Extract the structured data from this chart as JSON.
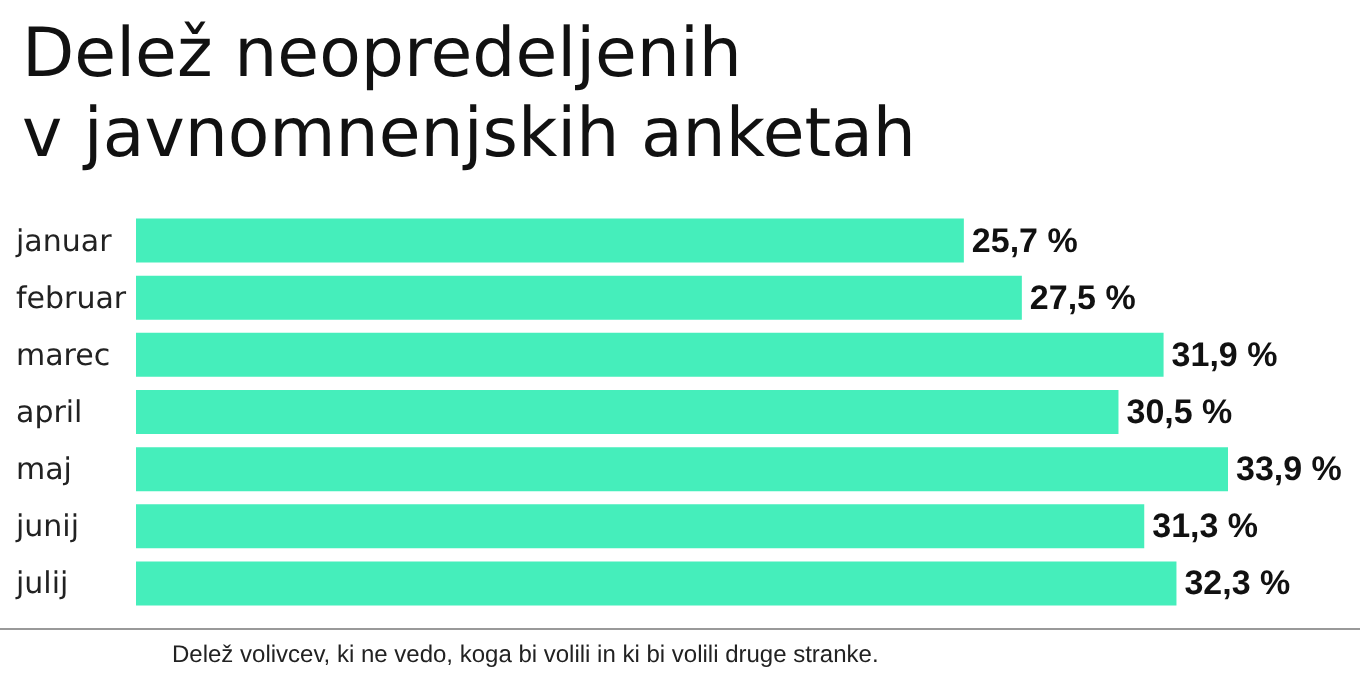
{
  "chart_data": {
    "type": "bar",
    "orientation": "horizontal",
    "title": "Delež neopredeljenih\nv javnomnenjskih anketah",
    "categories": [
      "januar",
      "februar",
      "marec",
      "april",
      "maj",
      "junij",
      "julij"
    ],
    "values": [
      25.7,
      27.5,
      31.9,
      30.5,
      33.9,
      31.3,
      32.3
    ],
    "value_labels": [
      "25,7 %",
      "27,5 %",
      "31,9 %",
      "30,5 %",
      "33,9 %",
      "31,3 %",
      "32,3 %"
    ],
    "color": "#45eebb",
    "annotations": [
      "Delež volivcev, ki ne vedo, koga bi volili in ki bi volili druge stranke."
    ]
  }
}
